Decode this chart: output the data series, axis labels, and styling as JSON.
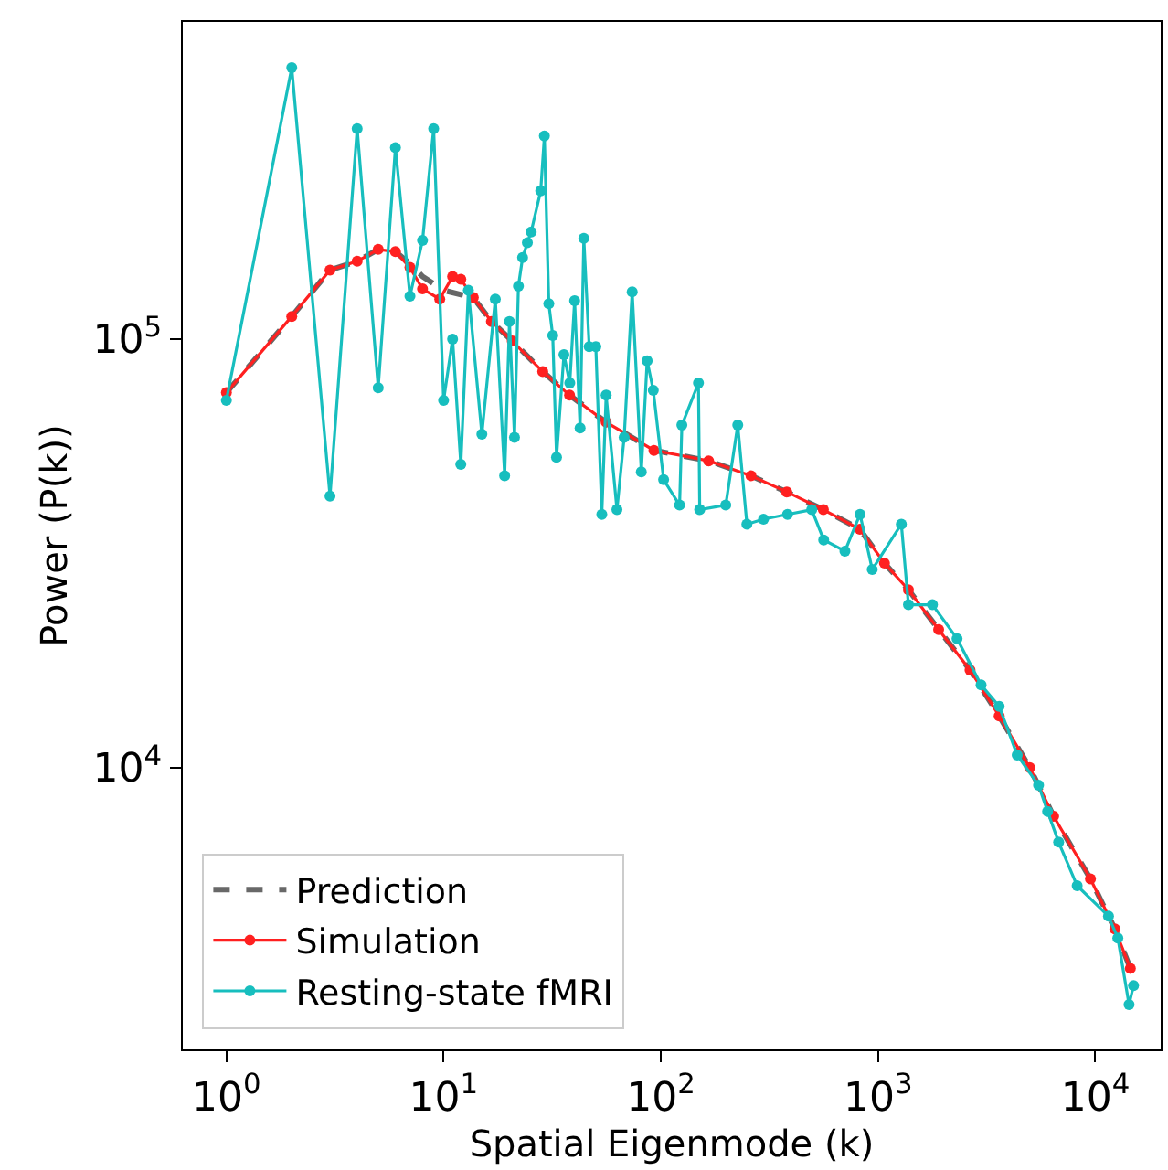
{
  "chart_data": {
    "type": "line",
    "xlabel": "Spatial Eigenmode (k)",
    "ylabel": "Power (P(k))",
    "log": "xy",
    "xlim": [
      0.63,
      20000
    ],
    "ylim": [
      2200,
      550000
    ],
    "xticks": [
      {
        "value": 1,
        "label": "10$^{0}$"
      },
      {
        "value": 10,
        "label": "10$^{1}$"
      },
      {
        "value": 100,
        "label": "10$^{2}$"
      },
      {
        "value": 1000,
        "label": "10$^{3}$"
      },
      {
        "value": 10000,
        "label": "10$^{4}$"
      }
    ],
    "yticks": [
      {
        "value": 10000,
        "label": "10$^{4}$"
      },
      {
        "value": 100000,
        "label": "10$^{5}$"
      }
    ],
    "legend": "bottom left",
    "series": [
      {
        "name": "Prediction",
        "color": "#4d4d4d",
        "line_style": "dashed",
        "marker": "none",
        "x": [
          1,
          2,
          3,
          4,
          5,
          6,
          7,
          8,
          10,
          13.7,
          16.6,
          20.7,
          28.6,
          38,
          56,
          93,
          166,
          260,
          380,
          560,
          825,
          1070,
          1380,
          1900,
          2650,
          3610,
          4990,
          6430,
          9500,
          12300,
          14500
        ],
        "values": [
          75000,
          113000,
          145000,
          152000,
          162000,
          160000,
          150000,
          140000,
          130000,
          125000,
          110000,
          99000,
          84000,
          74000,
          64000,
          55000,
          52000,
          48000,
          44000,
          40000,
          36000,
          30000,
          26000,
          21000,
          16900,
          13200,
          10000,
          7700,
          5500,
          4200,
          3400
        ]
      },
      {
        "name": "Simulation",
        "color": "#ff2020",
        "line_style": "solid",
        "marker": "circle",
        "x": [
          1,
          2,
          3,
          4,
          5,
          6,
          7,
          8,
          9.6,
          11,
          12,
          13.7,
          16.6,
          20.7,
          28.6,
          38,
          56,
          93,
          166,
          260,
          380,
          560,
          825,
          1070,
          1380,
          1900,
          2650,
          3610,
          4990,
          6430,
          9500,
          12300,
          14500
        ],
        "values": [
          75000,
          113000,
          145000,
          152000,
          162000,
          160000,
          147000,
          131000,
          124000,
          140000,
          138000,
          125000,
          110000,
          99000,
          84000,
          74000,
          64000,
          55000,
          52000,
          48000,
          44000,
          40000,
          36000,
          30000,
          26000,
          21000,
          16900,
          13200,
          10000,
          7700,
          5500,
          4200,
          3400
        ]
      },
      {
        "name": "Resting-state fMRI",
        "color": "#17bebe",
        "line_style": "solid",
        "marker": "circle",
        "x": [
          1,
          2,
          3,
          4,
          5,
          6,
          7,
          8,
          9,
          10,
          11,
          12,
          13,
          15,
          17.3,
          19.1,
          20.1,
          21.2,
          22.1,
          23.1,
          24.3,
          25.3,
          28,
          29.1,
          30.5,
          31.8,
          33.1,
          35.8,
          38.1,
          40.1,
          42.5,
          44.2,
          46.8,
          50.2,
          53.5,
          56,
          62.8,
          67.8,
          73.8,
          81.3,
          86.5,
          92.3,
          103,
          122,
          125,
          149,
          151,
          199,
          226,
          249,
          297,
          383,
          495,
          562,
          704,
          826,
          940,
          1280,
          1380,
          1780,
          2310,
          2980,
          3610,
          4370,
          5480,
          6030,
          6780,
          8250,
          11500,
          12700,
          14300,
          15000
        ],
        "values": [
          72000,
          430000,
          43000,
          310000,
          77000,
          280000,
          126000,
          170000,
          310000,
          72000,
          100000,
          51000,
          130000,
          60000,
          124000,
          48000,
          110000,
          59000,
          133000,
          155000,
          168000,
          178000,
          222000,
          298000,
          121000,
          102000,
          53000,
          92000,
          79000,
          123000,
          62000,
          172000,
          96000,
          96000,
          39000,
          74000,
          40000,
          59000,
          129000,
          49000,
          89000,
          76000,
          47000,
          41000,
          63000,
          79000,
          40000,
          41000,
          63000,
          37000,
          38000,
          39000,
          40000,
          34000,
          32000,
          39000,
          29000,
          37000,
          24000,
          24000,
          20000,
          15600,
          13900,
          10700,
          9100,
          7900,
          6700,
          5300,
          4500,
          4000,
          2800,
          3100
        ]
      }
    ]
  }
}
